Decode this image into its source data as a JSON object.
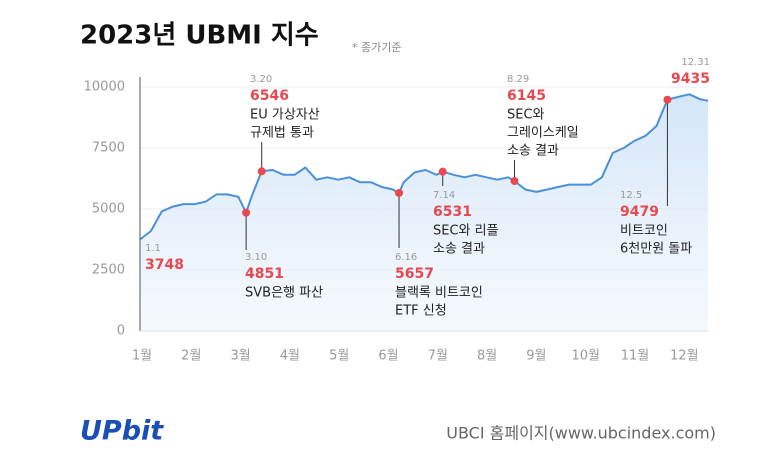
{
  "chart_data": {
    "type": "line",
    "title": "2023년 UBMI 지수",
    "subtitle": "* 종가기준",
    "categories": [
      "1월",
      "2월",
      "3월",
      "4월",
      "5월",
      "6월",
      "7월",
      "8월",
      "9월",
      "10월",
      "11월",
      "12월"
    ],
    "x": [
      "1.1",
      "1.8",
      "1.15",
      "1.22",
      "1.29",
      "2.5",
      "2.12",
      "2.19",
      "2.26",
      "3.5",
      "3.10",
      "3.14",
      "3.20",
      "3.27",
      "4.3",
      "4.10",
      "4.17",
      "4.24",
      "5.1",
      "5.8",
      "5.15",
      "5.22",
      "5.29",
      "6.5",
      "6.12",
      "6.16",
      "6.19",
      "6.26",
      "7.3",
      "7.10",
      "7.14",
      "7.21",
      "7.28",
      "8.4",
      "8.11",
      "8.18",
      "8.25",
      "8.29",
      "9.5",
      "9.12",
      "9.19",
      "9.26",
      "10.3",
      "10.10",
      "10.17",
      "10.24",
      "10.31",
      "11.7",
      "11.14",
      "11.21",
      "11.28",
      "12.5",
      "12.12",
      "12.19",
      "12.26",
      "12.31"
    ],
    "values": [
      3748,
      4100,
      4900,
      5100,
      5200,
      5200,
      5300,
      5600,
      5600,
      5500,
      4851,
      5600,
      6546,
      6600,
      6400,
      6400,
      6700,
      6200,
      6300,
      6200,
      6300,
      6100,
      6100,
      5900,
      5800,
      5657,
      6100,
      6500,
      6600,
      6400,
      6531,
      6400,
      6300,
      6400,
      6300,
      6200,
      6300,
      6145,
      5800,
      5700,
      5800,
      5900,
      6000,
      6000,
      6000,
      6300,
      7300,
      7500,
      7800,
      8000,
      8400,
      9479,
      9600,
      9700,
      9500,
      9435
    ],
    "color": "#4a90d9",
    "ylim": [
      0,
      10000
    ],
    "yticks": [
      0,
      2500,
      5000,
      7500,
      10000
    ],
    "grid": true,
    "annotations": [
      {
        "date": "1.1",
        "value": 3748
      },
      {
        "date": "3.10",
        "value": 4851,
        "text": [
          "SVB은행 파산"
        ]
      },
      {
        "date": "3.20",
        "value": 6546,
        "text": [
          "EU 가상자산",
          "규제법 통과"
        ]
      },
      {
        "date": "6.16",
        "value": 5657,
        "text": [
          "블랙록 비트코인",
          "ETF 신청"
        ]
      },
      {
        "date": "7.14",
        "value": 6531,
        "text": [
          "SEC와 리플",
          "소송 결과"
        ]
      },
      {
        "date": "8.29",
        "value": 6145,
        "text": [
          "SEC와",
          "그레이스케일",
          "소송 결과"
        ]
      },
      {
        "date": "12.5",
        "value": 9479,
        "text": [
          "비트코인",
          "6천만원 돌파"
        ]
      },
      {
        "date": "12.31",
        "value": 9435
      }
    ],
    "footer_logo": "UPbit",
    "footer_link": "UBCI 홈페이지(www.ubcindex.com)"
  }
}
